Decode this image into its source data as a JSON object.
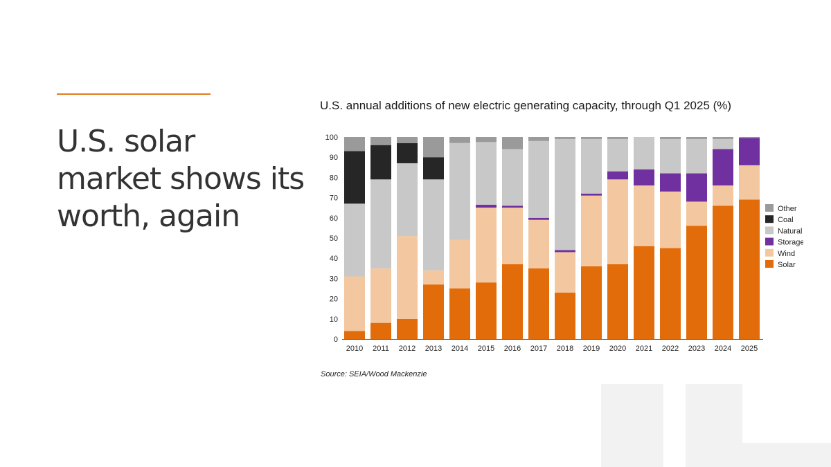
{
  "slide": {
    "title": "U.S. solar market shows its worth, again"
  },
  "chart_data": {
    "type": "bar",
    "stacked": true,
    "title": "U.S. annual additions of new electric generating capacity, through Q1 2025 (%)",
    "source": "Source: SEIA/Wood Mackenzie",
    "xlabel": "",
    "ylabel": "",
    "ylim": [
      0,
      100
    ],
    "yticks": [
      0,
      10,
      20,
      30,
      40,
      50,
      60,
      70,
      80,
      90,
      100
    ],
    "categories": [
      "2010",
      "2011",
      "2012",
      "2013",
      "2014",
      "2015",
      "2016",
      "2017",
      "2018",
      "2019",
      "2020",
      "2021",
      "2022",
      "2023",
      "2024",
      "2025"
    ],
    "series": [
      {
        "name": "Solar",
        "color": "#e36c0a",
        "values": [
          4,
          8,
          10,
          27,
          25,
          28,
          37,
          35,
          23,
          36,
          37,
          46,
          45,
          56,
          66,
          69
        ]
      },
      {
        "name": "Wind",
        "color": "#f3c8a0",
        "values": [
          27,
          27,
          41,
          7,
          24,
          37,
          28,
          24,
          20,
          35,
          42,
          30,
          28,
          12,
          10,
          17
        ]
      },
      {
        "name": "Storage",
        "color": "#7030a0",
        "values": [
          0,
          0,
          0,
          0,
          0,
          1.5,
          1,
          1,
          1,
          1,
          4,
          8,
          9,
          14,
          18,
          13.5
        ]
      },
      {
        "name": "Natural gas",
        "color": "#c8c8c8",
        "values": [
          36,
          44,
          36,
          45,
          48,
          31,
          28,
          38,
          55,
          27,
          16,
          16,
          17,
          17,
          5,
          0
        ]
      },
      {
        "name": "Coal",
        "color": "#262626",
        "values": [
          26,
          17,
          10,
          11,
          0,
          0,
          0,
          0,
          0,
          0,
          0,
          0,
          0,
          0,
          0,
          0
        ]
      },
      {
        "name": "Other",
        "color": "#9a9a9a",
        "values": [
          7,
          4,
          3,
          10,
          3,
          2.5,
          6,
          2,
          1,
          1,
          1,
          0,
          1,
          1,
          1,
          0.5
        ]
      }
    ],
    "legend_order": [
      "Other",
      "Coal",
      "Natural gas",
      "Storage",
      "Wind",
      "Solar"
    ],
    "legend_position": "right"
  }
}
